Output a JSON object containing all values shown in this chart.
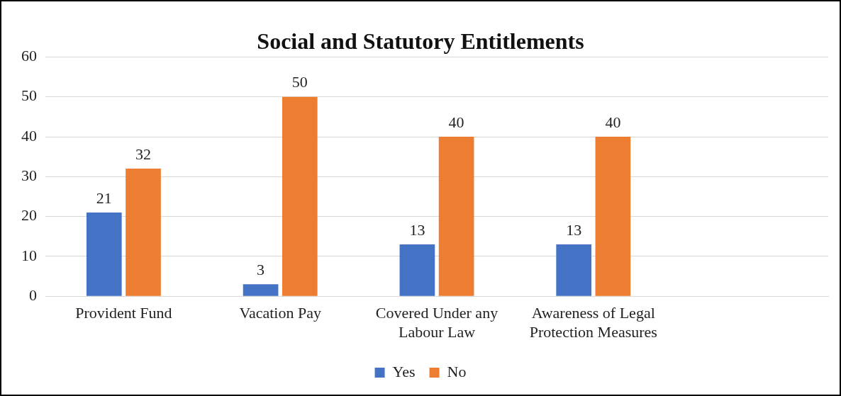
{
  "chart_data": {
    "type": "bar",
    "title": "Social and Statutory Entitlements",
    "categories": [
      "Provident Fund",
      "Vacation Pay",
      "Covered Under any Labour Law",
      "Awareness of Legal Protection Measures",
      null
    ],
    "series": [
      {
        "name": "Yes",
        "color": "#4472c4",
        "values": [
          21,
          3,
          13,
          13,
          null
        ]
      },
      {
        "name": "No",
        "color": "#ed7d31",
        "values": [
          32,
          50,
          40,
          40,
          null
        ]
      }
    ],
    "ylim": [
      0,
      60
    ],
    "yticks": [
      0,
      10,
      20,
      30,
      40,
      50,
      60
    ],
    "grid": "y",
    "legend": "bottom",
    "data_labels": true
  }
}
